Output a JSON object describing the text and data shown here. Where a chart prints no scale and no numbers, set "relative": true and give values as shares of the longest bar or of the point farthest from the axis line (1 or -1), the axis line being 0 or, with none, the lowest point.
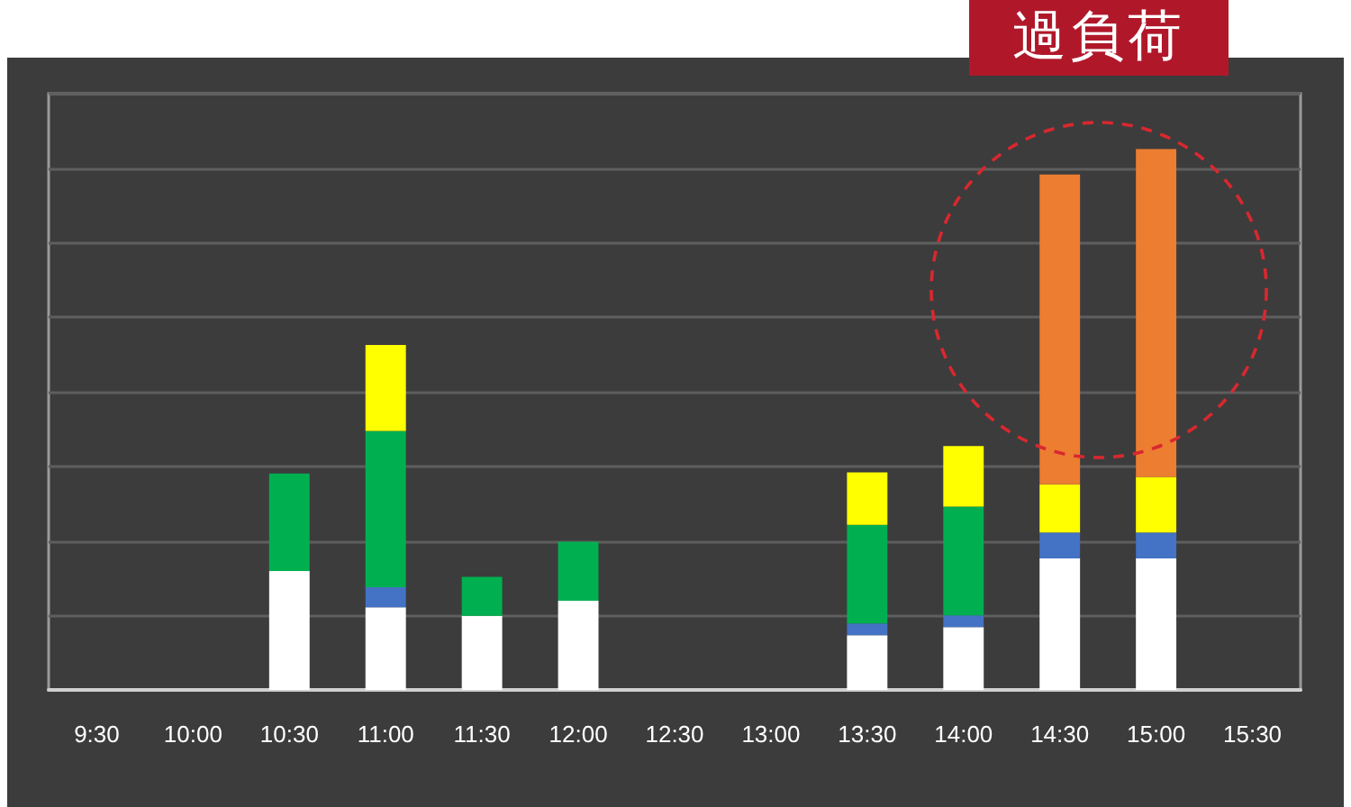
{
  "chart_data": {
    "type": "bar",
    "stacked": true,
    "relative": true,
    "grid": "y",
    "categories": [
      "9:30",
      "10:00",
      "10:30",
      "11:00",
      "11:30",
      "12:00",
      "12:30",
      "13:00",
      "13:30",
      "14:00",
      "14:30",
      "15:00",
      "15:30"
    ],
    "series": [
      {
        "color": "#ffffff",
        "values": [
          null,
          null,
          0.22,
          0.153,
          0.137,
          0.165,
          null,
          null,
          0.101,
          0.116,
          0.243,
          0.243,
          null
        ]
      },
      {
        "color": "#4472c4",
        "values": [
          null,
          null,
          null,
          0.037,
          null,
          null,
          null,
          null,
          0.022,
          0.022,
          0.048,
          0.048,
          null
        ]
      },
      {
        "color": "#00b050",
        "values": [
          null,
          null,
          0.18,
          0.289,
          0.072,
          0.109,
          null,
          null,
          0.182,
          0.201,
          null,
          null,
          null
        ]
      },
      {
        "color": "#ffff00",
        "values": [
          null,
          null,
          null,
          0.159,
          null,
          null,
          null,
          null,
          0.097,
          0.112,
          0.089,
          0.103,
          null
        ]
      },
      {
        "color": "#ed7d31",
        "values": [
          null,
          null,
          null,
          null,
          null,
          null,
          null,
          null,
          null,
          null,
          0.573,
          0.606,
          null
        ]
      }
    ],
    "annotations": [
      "過負荷"
    ]
  }
}
